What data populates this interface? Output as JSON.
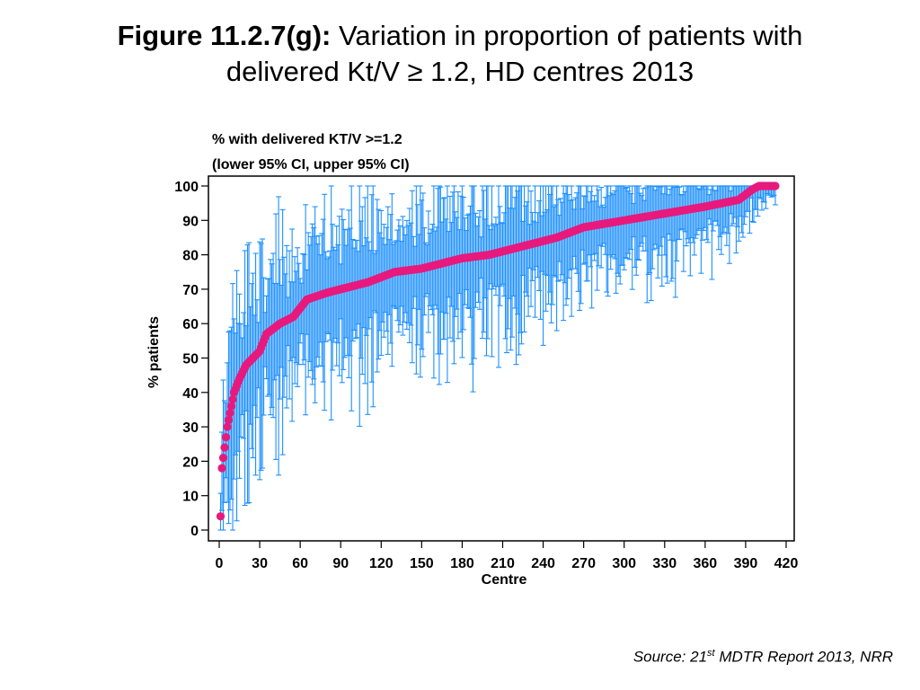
{
  "slide": {
    "title_bold": "Figure 11.2.7(g):",
    "title_rest_line1": " Variation in proportion of patients with",
    "title_line2": "delivered Kt/V ≥ 1.2, HD centres 2013",
    "source_prefix": "Source: 21",
    "source_sup": "st",
    "source_suffix": " MDTR Report 2013, NRR"
  },
  "chart_data": {
    "type": "scatter",
    "chart_title_line1": "% with delivered KT/V >=1.2",
    "chart_title_line2": "(lower 95% CI, upper 95% CI)",
    "xlabel": "Centre",
    "ylabel": "% patients",
    "xlim": [
      0,
      420
    ],
    "ylim": [
      0,
      100
    ],
    "xticks": [
      0,
      30,
      60,
      90,
      120,
      150,
      180,
      210,
      240,
      270,
      300,
      330,
      360,
      390,
      420
    ],
    "yticks": [
      0,
      10,
      20,
      30,
      40,
      50,
      60,
      70,
      80,
      90,
      100
    ],
    "grid": false,
    "n_centres": 412,
    "point_color": "#e8197d",
    "ci_color": "#1e90ff",
    "proportion_curve": [
      [
        1,
        4
      ],
      [
        2,
        18
      ],
      [
        4,
        24
      ],
      [
        6,
        30
      ],
      [
        9,
        36
      ],
      [
        11,
        40
      ],
      [
        15,
        44
      ],
      [
        20,
        48
      ],
      [
        30,
        52
      ],
      [
        35,
        57
      ],
      [
        45,
        60
      ],
      [
        55,
        62
      ],
      [
        65,
        67
      ],
      [
        80,
        69
      ],
      [
        100,
        71
      ],
      [
        110,
        72
      ],
      [
        130,
        75
      ],
      [
        150,
        76
      ],
      [
        180,
        79
      ],
      [
        200,
        80
      ],
      [
        230,
        83
      ],
      [
        250,
        85
      ],
      [
        270,
        88
      ],
      [
        300,
        90
      ],
      [
        330,
        92
      ],
      [
        360,
        94
      ],
      [
        385,
        96
      ],
      [
        395,
        99
      ],
      [
        400,
        100
      ],
      [
        412,
        100
      ]
    ]
  }
}
